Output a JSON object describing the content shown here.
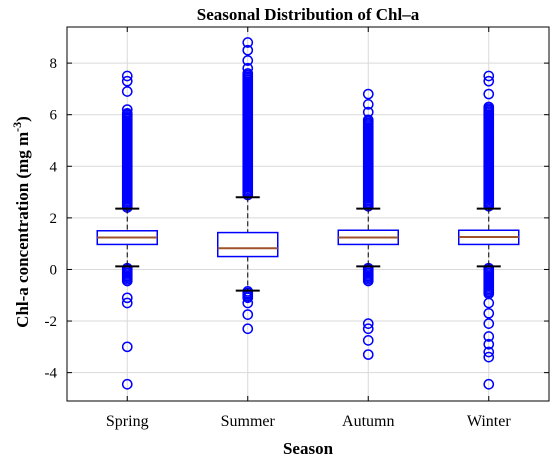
{
  "chart_data": {
    "type": "box",
    "title": "Seasonal Distribution of Chl–a",
    "xlabel": "Season",
    "ylabel_main": "Chl-a concentration (mg m",
    "ylabel_sup": "-3",
    "ylabel_close": ")",
    "categories": [
      "Spring",
      "Summer",
      "Autumn",
      "Winter"
    ],
    "ylim": [
      -5.1,
      9.4
    ],
    "yticks": [
      -4,
      -2,
      0,
      2,
      4,
      6,
      8
    ],
    "grid": true,
    "colors": {
      "box": "#0000ff",
      "median": "#a0522d",
      "whisker": "#000000",
      "outlier": "#0000ff",
      "grid": "#d9d9d9"
    },
    "series": [
      {
        "q1": 0.97,
        "median": 1.24,
        "q3": 1.5,
        "whisker_low": 0.12,
        "whisker_high": 2.36,
        "outliers_high_range": [
          2.4,
          6.0
        ],
        "outliers_high": [
          6.05,
          6.2,
          6.9,
          7.3,
          7.5
        ],
        "outliers_low_range": [
          -0.45,
          0.05
        ],
        "outliers_low": [
          -1.1,
          -1.3,
          -3.0,
          -4.45
        ]
      },
      {
        "q1": 0.5,
        "median": 0.82,
        "q3": 1.43,
        "whisker_low": -0.82,
        "whisker_high": 2.8,
        "outliers_high_range": [
          2.85,
          7.6
        ],
        "outliers_high": [
          7.8,
          8.1,
          8.5,
          8.8
        ],
        "outliers_low_range": [
          -1.15,
          -0.85
        ],
        "outliers_low": [
          -1.3,
          -1.75,
          -2.3
        ]
      },
      {
        "q1": 0.97,
        "median": 1.24,
        "q3": 1.52,
        "whisker_low": 0.12,
        "whisker_high": 2.36,
        "outliers_high_range": [
          2.4,
          5.8
        ],
        "outliers_high": [
          6.1,
          6.4,
          6.8
        ],
        "outliers_low_range": [
          -0.5,
          0.05
        ],
        "outliers_low": [
          -2.1,
          -2.3,
          -2.75,
          -3.3
        ]
      },
      {
        "q1": 0.97,
        "median": 1.26,
        "q3": 1.52,
        "whisker_low": 0.12,
        "whisker_high": 2.36,
        "outliers_high_range": [
          2.4,
          6.3
        ],
        "outliers_high": [
          6.8,
          7.3,
          7.5
        ],
        "outliers_low_range": [
          -1.0,
          0.05
        ],
        "outliers_low": [
          -1.3,
          -1.7,
          -2.1,
          -2.6,
          -2.9,
          -3.2,
          -3.4,
          -4.45
        ]
      }
    ]
  }
}
